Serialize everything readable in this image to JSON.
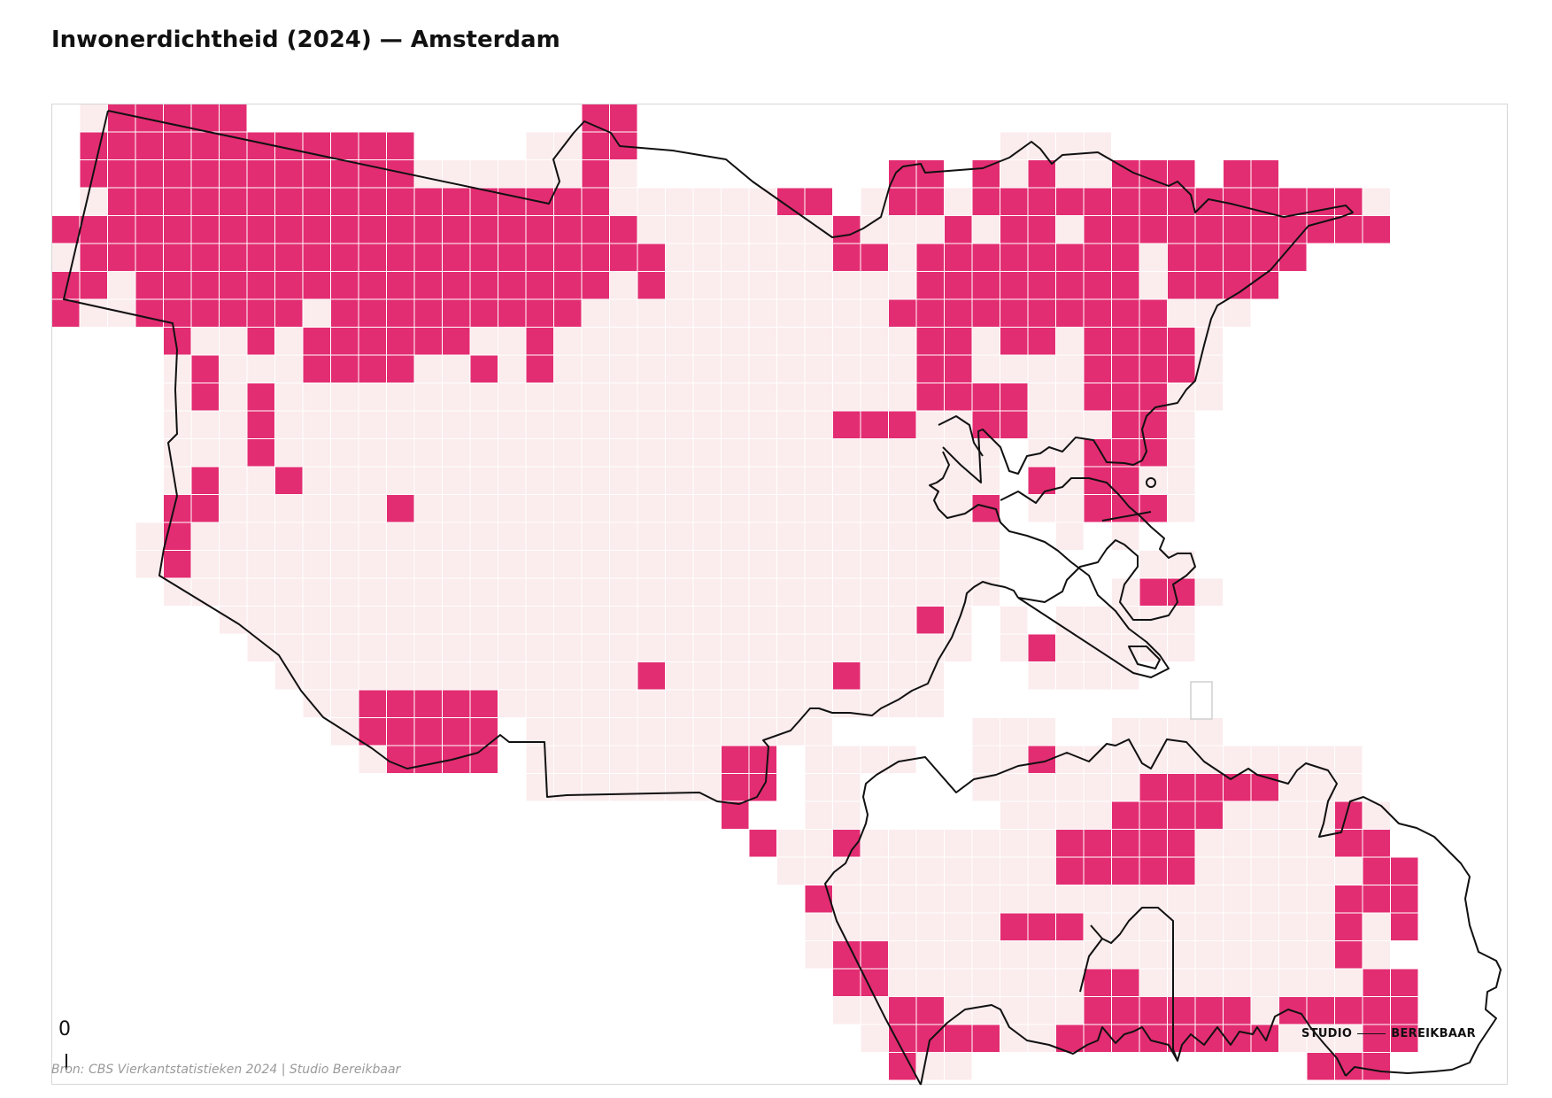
{
  "title": "Inwonerdichtheid (2024) — Amsterdam",
  "source": "Bron: CBS Vierkantstatistieken 2024 | Studio Bereikbaar",
  "scale_label": "0",
  "brand": {
    "left": "STUDIO",
    "right": "BEREIKBAAR"
  },
  "colors": {
    "high": "#e32d72",
    "low": "#fbeced",
    "grid_line": "#ffffff",
    "outline": "#111111",
    "frame": "#d6d6d6"
  }
}
